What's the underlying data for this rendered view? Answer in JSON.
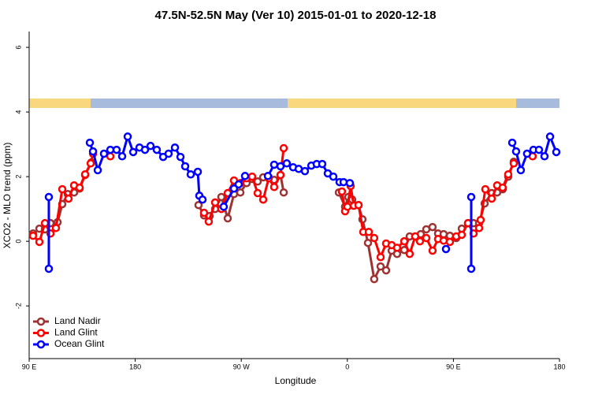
{
  "chart_data": {
    "type": "line",
    "title": "47.5N-52.5N May (Ver 10)   2015-01-01 to 2020-12-18",
    "x_label": "Longitude",
    "y_label": "XCO2 - MLO trend (ppm)",
    "xlim": [
      90,
      540
    ],
    "ylim": [
      -3.63,
      6.49
    ],
    "xticks": [
      {
        "value": 90,
        "label": "90 E"
      },
      {
        "value": 180,
        "label": "180"
      },
      {
        "value": 270,
        "label": "90 W"
      },
      {
        "value": 360,
        "label": "0"
      },
      {
        "value": 450,
        "label": "90 E"
      },
      {
        "value": 540,
        "label": "180"
      }
    ],
    "yticks": [
      -2,
      0,
      2,
      4,
      6
    ],
    "legend": "bottom-left",
    "series": [
      {
        "name": "Land Nadir",
        "color": "#9e3232",
        "x": [
          93.3,
          98.7,
          103.4,
          108.1,
          114.1,
          118.1,
          122.8,
          128.1,
          132.8,
          137.5,
          142.8,
          null,
          233.7,
          238.4,
          243.1,
          247.8,
          253.1,
          258.5,
          263.8,
          269.2,
          274.5,
          279.2,
          283.9,
          288.6,
          293.3,
          297.9,
          303.3,
          306.0,
          null,
          352.8,
          358.1,
          360.8,
          364.1,
          369.5,
          372.8,
          377.5,
          382.8,
          388.2,
          392.9,
          397.6,
          402.2,
          408.3,
          412.9,
          417.6,
          422.3,
          427.0,
          432.3,
          437.0,
          441.7,
          447.0,
          452.4,
          457.1,
          462.4,
          467.1,
          471.8,
          476.5,
          482.5,
          487.1,
          491.8,
          496.5,
          501.2
        ],
        "values": [
          0.24,
          0.39,
          0.37,
          0.56,
          0.59,
          1.15,
          1.46,
          1.51,
          1.63,
          2.05,
          2.44,
          null,
          1.12,
          0.8,
          0.78,
          1.0,
          1.37,
          0.71,
          1.46,
          1.51,
          1.8,
          1.93,
          1.85,
          1.98,
          1.98,
          1.9,
          2.05,
          1.51,
          null,
          1.51,
          1.07,
          1.37,
          1.29,
          1.12,
          0.68,
          -0.05,
          -1.17,
          -0.78,
          -0.9,
          -0.29,
          -0.39,
          -0.27,
          0.15,
          0.15,
          0.22,
          0.37,
          0.44,
          0.24,
          0.22,
          0.17,
          0.1,
          0.39,
          0.56,
          0.56,
          0.56,
          1.17,
          1.49,
          1.51,
          1.61,
          2.0,
          2.46
        ]
      },
      {
        "name": "Land Glint",
        "color": "#ff0000",
        "x": [
          93.3,
          98.7,
          103.4,
          108.1,
          112.7,
          118.1,
          123.4,
          128.1,
          132.8,
          137.5,
          142.2,
          144.2,
          null,
          158.9,
          null,
          238.4,
          242.4,
          247.8,
          253.1,
          258.5,
          263.8,
          269.2,
          274.5,
          279.2,
          283.9,
          288.6,
          293.3,
          297.9,
          303.3,
          306.0,
          null,
          355.4,
          358.1,
          360.1,
          362.8,
          365.5,
          369.5,
          373.5,
          378.2,
          382.8,
          388.2,
          392.9,
          397.6,
          402.2,
          408.3,
          412.9,
          417.6,
          421.6,
          427.0,
          432.3,
          437.0,
          441.7,
          447.0,
          452.4,
          457.1,
          462.4,
          467.1,
          471.8,
          473.1,
          477.1,
          482.5,
          487.1,
          491.8,
          496.5,
          501.2,
          null,
          517.2
        ],
        "values": [
          0.17,
          -0.02,
          0.56,
          0.24,
          0.41,
          1.61,
          1.32,
          1.73,
          1.66,
          2.07,
          2.41,
          2.71,
          null,
          2.63,
          null,
          0.88,
          0.61,
          1.2,
          1.0,
          1.49,
          1.88,
          1.8,
          1.95,
          2.0,
          1.49,
          1.29,
          1.95,
          1.68,
          2.05,
          2.88,
          null,
          1.54,
          0.93,
          1.07,
          1.71,
          1.1,
          1.12,
          0.29,
          0.29,
          0.1,
          -0.49,
          -0.07,
          -0.12,
          -0.2,
          0.0,
          -0.39,
          0.15,
          0.0,
          0.1,
          -0.29,
          0.07,
          0.02,
          -0.02,
          0.15,
          0.2,
          0.56,
          0.24,
          0.41,
          0.66,
          1.61,
          1.32,
          1.73,
          1.66,
          2.07,
          2.41,
          null,
          2.63
        ]
      },
      {
        "name": "Ocean Glint",
        "color": "#0000ff",
        "x": [
          106.7,
          106.7,
          null,
          141.5,
          144.2,
          148.2,
          153.5,
          158.9,
          164.2,
          168.9,
          173.6,
          178.3,
          183.6,
          188.3,
          193.0,
          198.3,
          203.7,
          208.3,
          213.7,
          218.4,
          222.4,
          227.1,
          233.1,
          234.4,
          237.1,
          null,
          255.1,
          263.8,
          267.8,
          273.2,
          null,
          292.6,
          297.9,
          303.3,
          308.6,
          314.0,
          318.7,
          324.0,
          329.4,
          334.0,
          338.7,
          343.4,
          348.1,
          353.4,
          356.8,
          362.1,
          null,
          443.7,
          null,
          465.1,
          465.1,
          null,
          499.9,
          503.2,
          507.2,
          512.5,
          517.9,
          522.6,
          527.3,
          532.0,
          537.3
        ],
        "values": [
          -0.85,
          1.37,
          null,
          3.05,
          2.78,
          2.2,
          2.71,
          2.83,
          2.83,
          2.63,
          3.24,
          2.76,
          2.9,
          2.83,
          2.95,
          2.83,
          2.61,
          2.71,
          2.9,
          2.61,
          2.32,
          2.07,
          2.15,
          1.41,
          1.29,
          null,
          1.07,
          1.63,
          1.76,
          2.02,
          null,
          2.02,
          2.37,
          2.32,
          2.41,
          2.29,
          2.24,
          2.17,
          2.34,
          2.39,
          2.39,
          2.1,
          2.0,
          1.83,
          1.83,
          1.8,
          null,
          -0.24,
          null,
          -0.85,
          1.37,
          null,
          3.05,
          2.78,
          2.2,
          2.71,
          2.83,
          2.83,
          2.63,
          3.24,
          2.76
        ]
      }
    ]
  }
}
